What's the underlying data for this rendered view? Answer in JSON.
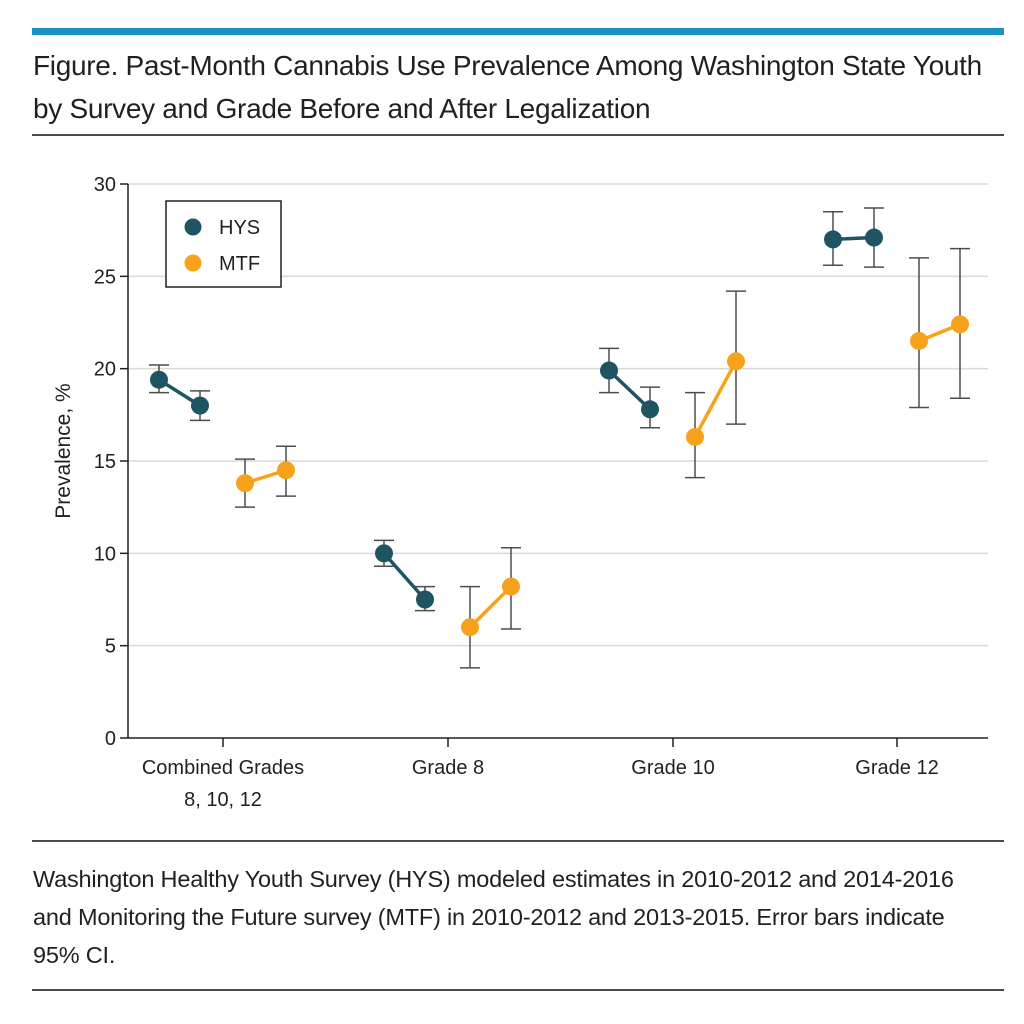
{
  "figure": {
    "title": "Figure. Past-Month Cannabis Use Prevalence Among Washington State Youth by Survey and Grade Before and After Legalization",
    "caption": "Washington Healthy Youth Survey (HYS) modeled estimates in 2010-2012 and 2014-2016 and Monitoring the Future survey (MTF) in 2010-2012 and 2013-2015. Error bars indicate 95% CI."
  },
  "colors": {
    "hys": "#1f5563",
    "mtf": "#f7a21b",
    "accent_rule": "#1a8fc8",
    "grid": "#d9d9d9",
    "errorbar": "#4d4d4d"
  },
  "chart_data": {
    "type": "scatter",
    "title": "",
    "xlabel": "",
    "ylabel": "Prevalence, %",
    "ylim": [
      0,
      30
    ],
    "yticks": [
      0,
      5,
      10,
      15,
      20,
      25,
      30
    ],
    "grid": true,
    "legend_position": "top-left",
    "categories": [
      [
        "Combined Grades",
        "8, 10, 12"
      ],
      [
        "Grade 8"
      ],
      [
        "Grade 10"
      ],
      [
        "Grade 12"
      ]
    ],
    "series": [
      {
        "name": "HYS",
        "color": "#1f5563",
        "periods": [
          "2010-2012",
          "2014-2016"
        ],
        "groups": [
          [
            {
              "y": 19.4,
              "lo": 18.7,
              "hi": 20.2
            },
            {
              "y": 18.0,
              "lo": 17.2,
              "hi": 18.8
            }
          ],
          [
            {
              "y": 10.0,
              "lo": 9.3,
              "hi": 10.7
            },
            {
              "y": 7.5,
              "lo": 6.9,
              "hi": 8.2
            }
          ],
          [
            {
              "y": 19.9,
              "lo": 18.7,
              "hi": 21.1
            },
            {
              "y": 17.8,
              "lo": 16.8,
              "hi": 19.0
            }
          ],
          [
            {
              "y": 27.0,
              "lo": 25.6,
              "hi": 28.5
            },
            {
              "y": 27.1,
              "lo": 25.5,
              "hi": 28.7
            }
          ]
        ]
      },
      {
        "name": "MTF",
        "color": "#f7a21b",
        "periods": [
          "2010-2012",
          "2013-2015"
        ],
        "groups": [
          [
            {
              "y": 13.8,
              "lo": 12.5,
              "hi": 15.1
            },
            {
              "y": 14.5,
              "lo": 13.1,
              "hi": 15.8
            }
          ],
          [
            {
              "y": 6.0,
              "lo": 3.8,
              "hi": 8.2
            },
            {
              "y": 8.2,
              "lo": 5.9,
              "hi": 10.3
            }
          ],
          [
            {
              "y": 16.3,
              "lo": 14.1,
              "hi": 18.7
            },
            {
              "y": 20.4,
              "lo": 17.0,
              "hi": 24.2
            }
          ],
          [
            {
              "y": 21.5,
              "lo": 17.9,
              "hi": 26.0
            },
            {
              "y": 22.4,
              "lo": 18.4,
              "hi": 26.5
            }
          ]
        ]
      }
    ]
  }
}
